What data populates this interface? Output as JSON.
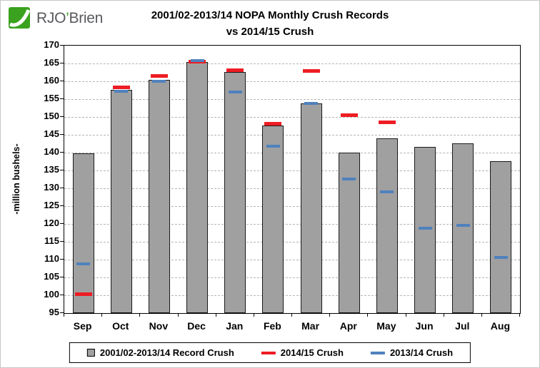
{
  "logo": {
    "prefix": "RJO",
    "apostrophe": "’",
    "suffix": "Brien",
    "green": "#3aa21f"
  },
  "title": {
    "line1": "2001/02-2013/14 NOPA Monthly Crush Records",
    "line2": "vs 2014/15 Crush"
  },
  "chart_data": {
    "type": "bar",
    "title": "2001/02-2013/14 NOPA Monthly Crush Records vs 2014/15 Crush",
    "ylabel": "-million bushels-",
    "ylim": [
      95,
      170
    ],
    "ytick_step": 5,
    "grid": true,
    "legend_position": "bottom",
    "categories": [
      "Sep",
      "Oct",
      "Nov",
      "Dec",
      "Jan",
      "Feb",
      "Mar",
      "Apr",
      "May",
      "Jun",
      "Jul",
      "Aug"
    ],
    "series": [
      {
        "name": "2001/02-2013/14 Record Crush",
        "marker": "bar",
        "color": "#a0a0a0",
        "values": [
          139.9,
          157.7,
          160.4,
          165.5,
          162.7,
          147.7,
          153.8,
          140.0,
          144.1,
          141.7,
          142.6,
          137.6
        ]
      },
      {
        "name": "2014/15 Crush",
        "marker": "dash",
        "color": "#ee1c23",
        "values": [
          100.3,
          158.4,
          161.5,
          165.5,
          163.2,
          148.2,
          163.0,
          150.5,
          148.6,
          null,
          null,
          null
        ]
      },
      {
        "name": "2013/14 Crush",
        "marker": "dash",
        "color": "#4f81bd",
        "values": [
          108.8,
          157.3,
          160.1,
          165.9,
          157.0,
          141.8,
          153.8,
          132.7,
          129.0,
          118.9,
          119.6,
          110.7
        ]
      }
    ]
  }
}
